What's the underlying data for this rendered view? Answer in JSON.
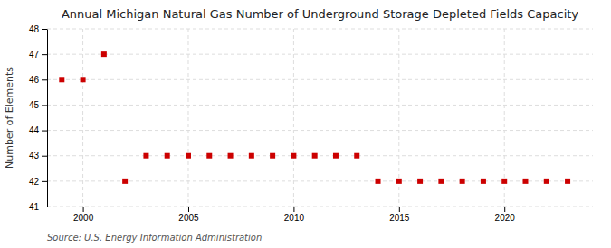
{
  "chart_data": {
    "type": "scatter",
    "title": "Annual Michigan Natural Gas Number of Underground Storage Depleted Fields Capacity",
    "ylabel": "Number of Elements",
    "source": "Source: U.S. Energy Information Administration",
    "x": [
      1999,
      2000,
      2001,
      2002,
      2003,
      2004,
      2005,
      2006,
      2007,
      2008,
      2009,
      2010,
      2011,
      2012,
      2013,
      2014,
      2015,
      2016,
      2017,
      2018,
      2019,
      2020,
      2021,
      2022,
      2023
    ],
    "values": [
      46,
      46,
      47,
      42,
      43,
      43,
      43,
      43,
      43,
      43,
      43,
      43,
      43,
      43,
      43,
      42,
      42,
      42,
      42,
      42,
      42,
      42,
      42,
      42,
      42
    ],
    "color": "#cc0000",
    "marker": "square",
    "grid": true,
    "xlim": [
      1998.3,
      2024.2
    ],
    "xticks": [
      2000,
      2005,
      2010,
      2015,
      2020
    ],
    "ylim": [
      41,
      48
    ],
    "yticks": [
      41,
      42,
      43,
      44,
      45,
      46,
      47,
      48
    ]
  }
}
